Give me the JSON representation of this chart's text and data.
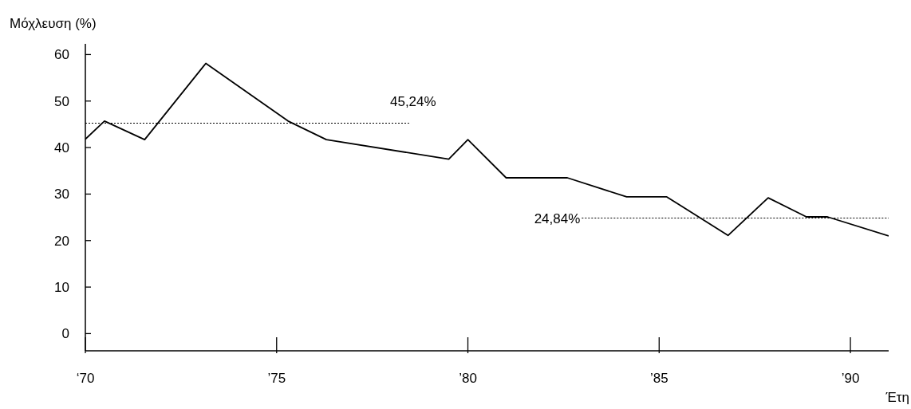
{
  "chart_data": {
    "type": "line",
    "ylabel": "Μόχλευση (%)",
    "xlabel": "Έτη",
    "x": [
      70,
      70.5,
      71.55,
      73.15,
      75.3,
      76.3,
      79.5,
      80,
      81,
      82.6,
      84.15,
      85.2,
      86.8,
      87.85,
      88.85,
      89.4,
      91
    ],
    "series": [
      {
        "color": "#000000",
        "values": [
          41.8,
          45.7,
          41.7,
          58.1,
          45.7,
          41.7,
          37.5,
          41.7,
          33.5,
          33.5,
          29.4,
          29.4,
          21.1,
          29.2,
          25.1,
          25.1,
          21
        ]
      }
    ],
    "xlim": [
      70,
      91
    ],
    "ylim": [
      -3.7,
      62.3
    ],
    "xticks": [
      {
        "value": 70,
        "label": "‘70"
      },
      {
        "value": 75,
        "label": "’75"
      },
      {
        "value": 80,
        "label": "’80"
      },
      {
        "value": 85,
        "label": "’85"
      },
      {
        "value": 90,
        "label": "’90"
      }
    ],
    "yticks": [
      0,
      10,
      20,
      30,
      40,
      50,
      60
    ],
    "ref_lines": [
      {
        "axis": "y",
        "value": 45.24,
        "label": "45,24%",
        "color": "#000000",
        "line_style": "dotted"
      },
      {
        "axis": "y",
        "value": 24.84,
        "label": "24,84%",
        "color": "#000000",
        "line_style": "dotted"
      }
    ],
    "grid": false,
    "legend": false,
    "marker": "none",
    "line_style": "solid"
  }
}
